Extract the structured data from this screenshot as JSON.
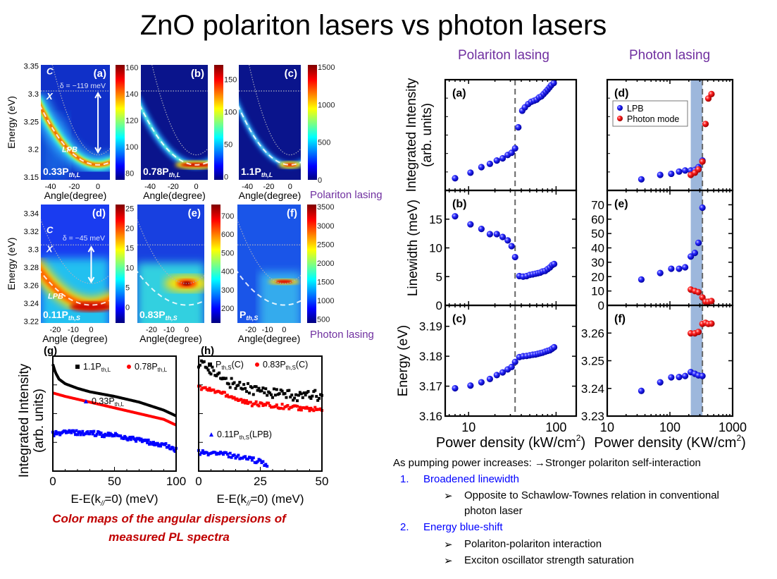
{
  "title": "ZnO polariton lasers vs photon lasers",
  "right_headers": [
    "Polariton lasing",
    "Photon lasing"
  ],
  "left_row_labels": [
    "Polariton lasing",
    "Photon lasing"
  ],
  "caption": [
    "Color maps of the angular dispersions of",
    "measured PL spectra"
  ],
  "notes": {
    "intro": "As pumping power increases: →Stronger polariton self-interaction",
    "items": [
      {
        "num": "1.",
        "label": "Broadened linewidth",
        "subs": [
          "Opposite to Schawlow-Townes relation in conventional",
          "photon laser"
        ]
      },
      {
        "num": "2.",
        "label": "Energy blue-shift",
        "subs": [
          "Polariton-polariton interaction",
          "Exciton oscillator strength saturation"
        ]
      }
    ],
    "bullet": "➢"
  },
  "colors": {
    "lpb": "#1a1aff",
    "photon": "#ff1a1a",
    "band": "#9db7dc",
    "accent_purple": "#7030a0",
    "caption_red": "#c00000"
  },
  "color_maps": [
    {
      "panel_label": "(a)",
      "type": "heatmap",
      "ylabel": "Energy (eV)",
      "yticks": [
        "3.35",
        "3.3",
        "3.25",
        "3.2",
        "3.15"
      ],
      "xlabel": "Angle(degree)",
      "xticks": [
        "-40",
        "-20",
        "0"
      ],
      "colorbar_ticks": [
        "80",
        "100",
        "120",
        "140",
        "160"
      ],
      "power_main": "0.33P",
      "power_sub": "th,L",
      "annotations": {
        "c": "C",
        "x": "X",
        "detuning": "δ = −119 meV",
        "lpb": "LPB"
      }
    },
    {
      "panel_label": "(b)",
      "type": "heatmap",
      "xlabel": "Angle(degree)",
      "xticks": [
        "-40",
        "-20",
        "0"
      ],
      "colorbar_ticks": [
        "0",
        "50",
        "100",
        "150"
      ],
      "power_main": "0.78P",
      "power_sub": "th,L"
    },
    {
      "panel_label": "(c)",
      "type": "heatmap",
      "xlabel": "Angle(degree)",
      "xticks": [
        "-40",
        "-20",
        "0"
      ],
      "colorbar_ticks": [
        "0",
        "500",
        "1000",
        "1500"
      ],
      "power_main": "1.1P",
      "power_sub": "th,L"
    },
    {
      "panel_label": "(d)",
      "type": "heatmap",
      "ylabel": "Energy (eV)",
      "yticks": [
        "3.34",
        "3.32",
        "3.3",
        "3.28",
        "3.26",
        "3.24",
        "3.22"
      ],
      "xlabel": "Angle (degree)",
      "xticks": [
        "-20",
        "-10",
        "0"
      ],
      "colorbar_ticks": [
        "0",
        "5",
        "10",
        "15",
        "20",
        "25"
      ],
      "power_main": "0.11P",
      "power_sub": "th,S",
      "annotations": {
        "c": "C",
        "x": "X",
        "detuning": "δ = −45 meV",
        "lpb": "LPB"
      }
    },
    {
      "panel_label": "(e)",
      "type": "heatmap",
      "xlabel": "Angle(degree)",
      "xticks": [
        "-20",
        "-10",
        "0"
      ],
      "colorbar_ticks": [
        "200",
        "300",
        "400",
        "500",
        "600",
        "700"
      ],
      "power_main": "0.83P",
      "power_sub": "th,S"
    },
    {
      "panel_label": "(f)",
      "type": "heatmap",
      "xlabel": "Angle(degree)",
      "xticks": [
        "-20",
        "-10",
        "0"
      ],
      "colorbar_ticks": [
        "500",
        "1000",
        "1500",
        "2000",
        "2500",
        "3000",
        "3500"
      ],
      "power_main": "P",
      "power_sub": "th,S"
    }
  ],
  "chart_data": [
    {
      "panel_label": "(a)",
      "type": "scatter",
      "xscale": "log",
      "xlim": [
        5.4,
        170
      ],
      "ylim": [
        0,
        10
      ],
      "ylabel_lines": [
        "Integrated Intensity",
        "(arb. units)"
      ],
      "yticks": [],
      "threshold": 34,
      "series": [
        {
          "color": "#1a1aff",
          "x": [
            7,
            10.5,
            14,
            17.5,
            21,
            24.5,
            28,
            31,
            34,
            37,
            41,
            44,
            48,
            52,
            56,
            60,
            64,
            68,
            72,
            76,
            80,
            84,
            88,
            94
          ],
          "y": [
            1.1,
            1.6,
            2.1,
            2.4,
            2.7,
            2.9,
            3.2,
            3.4,
            3.8,
            5.7,
            7.2,
            7.5,
            7.8,
            8.0,
            8.1,
            8.2,
            8.4,
            8.5,
            8.7,
            8.9,
            9.1,
            9.3,
            9.5,
            9.7
          ]
        }
      ]
    },
    {
      "panel_label": "(b)",
      "type": "scatter",
      "xscale": "log",
      "xlim": [
        5.4,
        170
      ],
      "ylim": [
        0,
        20
      ],
      "ylabel_lines": [
        "Linewidth (meV)"
      ],
      "yticks": [
        "0",
        "5",
        "10",
        "15"
      ],
      "threshold": 34,
      "series": [
        {
          "color": "#1a1aff",
          "x": [
            7,
            10.5,
            14,
            17.5,
            21,
            24.5,
            28,
            31,
            34,
            38,
            42,
            46,
            50,
            54,
            58,
            62,
            66,
            70,
            75,
            80,
            85,
            90,
            95
          ],
          "y": [
            15.5,
            14.1,
            13.3,
            12.4,
            12.4,
            11.9,
            11.3,
            10.3,
            8.4,
            5.1,
            5.0,
            5.1,
            5.3,
            5.4,
            5.5,
            5.6,
            5.7,
            5.9,
            6.0,
            6.3,
            6.6,
            7.0,
            7.2
          ]
        }
      ]
    },
    {
      "panel_label": "(c)",
      "type": "scatter",
      "xscale": "log",
      "xlim": [
        5.4,
        170
      ],
      "ylim": [
        3.16,
        3.197
      ],
      "ylabel_lines": [
        "Energy (eV)"
      ],
      "yticks": [
        "3.16",
        "3.17",
        "3.18",
        "3.19"
      ],
      "xticks": [
        "10",
        "100"
      ],
      "threshold": 34,
      "xlabel_main": "Power density (kW/cm",
      "xlabel_sup": "2",
      "xlabel_end": ")",
      "series": [
        {
          "color": "#1a1aff",
          "x": [
            7,
            10.5,
            14,
            17.5,
            21,
            24.5,
            28,
            31,
            34,
            38,
            42,
            46,
            50,
            54,
            58,
            62,
            66,
            70,
            75,
            80,
            85,
            90,
            95
          ],
          "y": [
            3.1693,
            3.1702,
            3.1713,
            3.1724,
            3.1737,
            3.1746,
            3.1756,
            3.1764,
            3.1781,
            3.1797,
            3.18,
            3.1801,
            3.1803,
            3.1805,
            3.1806,
            3.1808,
            3.181,
            3.1812,
            3.1815,
            3.1818,
            3.182,
            3.1825,
            3.183
          ]
        }
      ]
    },
    {
      "panel_label": "(d)",
      "type": "scatter",
      "xscale": "log",
      "xlim": [
        10,
        1000
      ],
      "ylim": [
        0,
        10
      ],
      "yticks": [],
      "threshold": 330,
      "band": [
        215,
        330
      ],
      "legend": [
        "LPB",
        "Photon mode"
      ],
      "legend_placement": "top-left",
      "series": [
        {
          "name": "LPB",
          "color": "#1a1aff",
          "x": [
            35,
            70,
            105,
            140,
            175,
            215,
            250,
            285,
            330
          ],
          "y": [
            1.0,
            1.4,
            1.5,
            1.7,
            1.8,
            1.8,
            1.85,
            2.1,
            2.7
          ]
        },
        {
          "name": "Photon mode",
          "color": "#ff1a1a",
          "x": [
            215,
            250,
            285,
            330,
            370,
            410,
            460
          ],
          "y": [
            1.4,
            1.6,
            1.9,
            2.6,
            6.0,
            8.3,
            8.7
          ]
        }
      ]
    },
    {
      "panel_label": "(e)",
      "type": "scatter",
      "xscale": "log",
      "xlim": [
        10,
        1000
      ],
      "ylim": [
        0,
        80
      ],
      "yticks": [
        "0",
        "10",
        "20",
        "30",
        "40",
        "50",
        "60",
        "70"
      ],
      "threshold": 330,
      "band": [
        215,
        330
      ],
      "series": [
        {
          "name": "LPB",
          "color": "#1a1aff",
          "x": [
            35,
            70,
            105,
            140,
            175,
            215,
            250,
            285,
            330
          ],
          "y": [
            18,
            22.5,
            25.5,
            25.5,
            26.5,
            34,
            36.5,
            43.5,
            68
          ]
        },
        {
          "name": "Photon mode",
          "color": "#ff1a1a",
          "x": [
            215,
            250,
            285,
            330,
            370,
            410,
            460
          ],
          "y": [
            11,
            10,
            9.2,
            5.5,
            2.5,
            2.5,
            3
          ]
        }
      ]
    },
    {
      "panel_label": "(f)",
      "type": "scatter",
      "xscale": "log",
      "xlim": [
        10,
        1000
      ],
      "ylim": [
        3.23,
        3.27
      ],
      "yticks": [
        "3.23",
        "3.24",
        "3.25",
        "3.26"
      ],
      "xticks": [
        "10",
        "100",
        "1000"
      ],
      "threshold": 330,
      "band": [
        215,
        330
      ],
      "xlabel_main": "Power density (KW/cm",
      "xlabel_sup": "2",
      "xlabel_end": ")",
      "series": [
        {
          "name": "LPB",
          "color": "#1a1aff",
          "x": [
            35,
            70,
            105,
            140,
            175,
            215,
            250,
            285,
            330
          ],
          "y": [
            3.2391,
            3.2422,
            3.244,
            3.2441,
            3.2445,
            3.2459,
            3.2453,
            3.2447,
            3.2445
          ]
        },
        {
          "name": "Photon mode",
          "color": "#ff1a1a",
          "x": [
            215,
            250,
            285,
            330,
            370,
            410,
            460
          ],
          "y": [
            3.2599,
            3.2599,
            3.2604,
            3.2633,
            3.2637,
            3.2633,
            3.2634
          ]
        }
      ]
    },
    {
      "panel_label": "(g)",
      "type": "line",
      "xlim": [
        0,
        100
      ],
      "ylim": [
        0,
        10
      ],
      "xticks": [
        "0",
        "50",
        "100"
      ],
      "ylabel_lines": [
        "Integrated Intensity",
        "(arb. units)"
      ],
      "xlabel_main": "E-E(k",
      "xlabel_sub": "//",
      "xlabel_end": "=0) (meV)",
      "series": [
        {
          "main": "1.1P",
          "sub": "th,L",
          "end": "",
          "color": "#000000",
          "marker": "square",
          "x": [
            0,
            2,
            5,
            10,
            20,
            30,
            50,
            70,
            90,
            100
          ],
          "y": [
            9.3,
            8.6,
            8.0,
            7.6,
            7.2,
            6.9,
            6.5,
            6.0,
            5.3,
            4.8
          ]
        },
        {
          "main": "0.78P",
          "sub": "th,L",
          "end": "",
          "color": "#ff0000",
          "marker": "circle",
          "x": [
            0,
            10,
            30,
            50,
            70,
            90,
            100
          ],
          "y": [
            6.8,
            6.5,
            6.0,
            5.5,
            5.0,
            4.5,
            4.0
          ]
        },
        {
          "main": "0.33P",
          "sub": "th,L",
          "end": "",
          "color": "#0000ff",
          "marker": "triangle",
          "x": [
            0,
            10,
            30,
            50,
            70,
            90,
            100
          ],
          "y": [
            3.2,
            3.4,
            3.3,
            3.1,
            2.7,
            2.3,
            1.8
          ]
        }
      ]
    },
    {
      "panel_label": "(h)",
      "type": "scatter",
      "xlim": [
        0,
        50
      ],
      "ylim": [
        0,
        10
      ],
      "xticks": [
        "0",
        "25",
        "50"
      ],
      "xlabel_main": "E-E(k",
      "xlabel_sub": "//",
      "xlabel_end": "=0) (meV)",
      "series": [
        {
          "main": "P",
          "sub": "th,S",
          "end": "(C)",
          "color": "#000000",
          "marker": "square",
          "x": [
            0,
            10,
            20,
            30,
            40,
            50
          ],
          "y": [
            9.5,
            7.9,
            7.2,
            6.8,
            6.5,
            6.6
          ]
        },
        {
          "main": "0.83P",
          "sub": "th,S",
          "end": "(C)",
          "color": "#ff0000",
          "marker": "circle",
          "x": [
            0,
            10,
            20,
            30,
            40,
            50
          ],
          "y": [
            7.3,
            6.8,
            5.9,
            5.7,
            5.5,
            5.3
          ]
        },
        {
          "main": "0.11P",
          "sub": "th,S",
          "end": "(LPB)",
          "color": "#0000ff",
          "marker": "triangle",
          "x": [
            0,
            10,
            20,
            28
          ],
          "y": [
            1.6,
            1.5,
            1.1,
            0.6
          ]
        }
      ]
    }
  ]
}
